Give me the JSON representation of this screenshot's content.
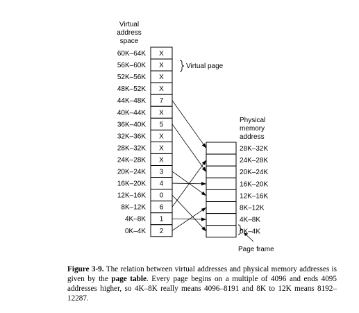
{
  "virtual_space_title": [
    "Virtual",
    "address",
    "space"
  ],
  "physical_memory_title": [
    "Physical",
    "memory",
    "address"
  ],
  "virtual_page_label": "Virtual page",
  "page_frame_label": "Page frame",
  "virtual_pages": [
    {
      "range": "60K–64K",
      "frame": "X"
    },
    {
      "range": "56K–60K",
      "frame": "X"
    },
    {
      "range": "52K–56K",
      "frame": "X"
    },
    {
      "range": "48K–52K",
      "frame": "X"
    },
    {
      "range": "44K–48K",
      "frame": "7"
    },
    {
      "range": "40K–44K",
      "frame": "X"
    },
    {
      "range": "36K–40K",
      "frame": "5"
    },
    {
      "range": "32K–36K",
      "frame": "X"
    },
    {
      "range": "28K–32K",
      "frame": "X"
    },
    {
      "range": "24K–28K",
      "frame": "X"
    },
    {
      "range": "20K–24K",
      "frame": "3"
    },
    {
      "range": "16K–20K",
      "frame": "4"
    },
    {
      "range": "12K–16K",
      "frame": "0"
    },
    {
      "range": "8K–12K",
      "frame": "6"
    },
    {
      "range": "4K–8K",
      "frame": "1"
    },
    {
      "range": "0K–4K",
      "frame": "2"
    }
  ],
  "physical_frames": [
    "28K–32K",
    "24K–28K",
    "20K–24K",
    "16K–20K",
    "12K–16K",
    "8K–12K",
    "4K–8K",
    "0K–4K"
  ],
  "caption": {
    "figure": "Figure 3-9.",
    "text1": " The relation between virtual addresses and physical memory addresses is given by the ",
    "bold": "page table",
    "text2": ". Every page begins on a multiple of 4096 and ends 4095 addresses higher, so 4K–8K really means 4096–8191 and 8K to 12K means 8192–12287."
  }
}
